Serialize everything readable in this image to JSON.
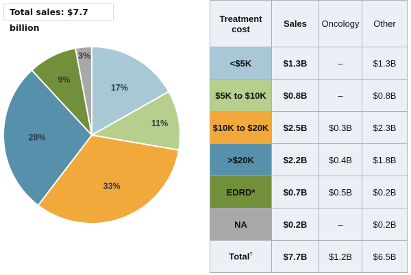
{
  "title": "Total sales: $7.7 billion",
  "chart_data": {
    "type": "pie",
    "title": "Total sales: $7.7 billion",
    "slices": [
      {
        "label": "<$5K",
        "value": 17,
        "display": "17%",
        "color": "#a9c8d6"
      },
      {
        "label": "$5K to $10K",
        "value": 11,
        "display": "11%",
        "color": "#b7cf8d"
      },
      {
        "label": "$10K to $20K",
        "value": 33,
        "display": "33%",
        "color": "#f2a93b"
      },
      {
        "label": ">$20K",
        "value": 28,
        "display": "28%",
        "color": "#5690aa"
      },
      {
        "label": "EDRD*",
        "value": 9,
        "display": "9%",
        "color": "#728f39"
      },
      {
        "label": "NA",
        "value": 3,
        "display": "3%",
        "color": "#a8a8a8"
      }
    ]
  },
  "table": {
    "headers": [
      "Treatment cost",
      "Sales",
      "Oncology",
      "Other"
    ],
    "rows": [
      {
        "category": "<$5K",
        "sales": "$1.3B",
        "oncology": "–",
        "other": "$1.3B",
        "color": "#a9c8d6"
      },
      {
        "category": "$5K to $10K",
        "sales": "$0.8B",
        "oncology": "–",
        "other": "$0.8B",
        "color": "#b7cf8d"
      },
      {
        "category": "$10K to $20K",
        "sales": "$2.5B",
        "oncology": "$0.3B",
        "other": "$2.3B",
        "color": "#f2a93b"
      },
      {
        "category": ">$20K",
        "sales": "$2.2B",
        "oncology": "$0.4B",
        "other": "$1.8B",
        "color": "#5690aa"
      },
      {
        "category": "EDRD*",
        "sales": "$0.7B",
        "oncology": "$0.5B",
        "other": "$0.2B",
        "color": "#728f39"
      },
      {
        "category": "NA",
        "sales": "$0.2B",
        "oncology": "–",
        "other": "$0.2B",
        "color": "#a8a8a8"
      }
    ],
    "total": {
      "category": "Total",
      "category_mark": "†",
      "sales": "$7.7B",
      "oncology": "$1.2B",
      "other": "$6.5B"
    }
  }
}
